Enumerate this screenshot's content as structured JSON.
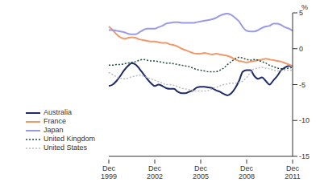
{
  "chart_data": {
    "type": "line",
    "y_label": "%",
    "categories": [
      "Dec 1999",
      null,
      null,
      null,
      null,
      null,
      null,
      null,
      null,
      null,
      null,
      null,
      "Dec 2002",
      null,
      null,
      null,
      null,
      null,
      null,
      null,
      null,
      null,
      null,
      null,
      "Dec 2005",
      null,
      null,
      null,
      null,
      null,
      null,
      null,
      null,
      null,
      null,
      null,
      "Dec 2008",
      null,
      null,
      null,
      null,
      null,
      null,
      null,
      null,
      null,
      null,
      null,
      "Dec 2011"
    ],
    "ylim": [
      -15,
      5
    ],
    "yticks": [
      -15,
      -10,
      -5,
      0,
      5
    ],
    "grid": false,
    "legend": "lower left",
    "series": [
      {
        "name": "Australia",
        "color": "#1f2a6b",
        "line_style": "solid",
        "values": [
          -5.2,
          -5.0,
          -4.5,
          -3.8,
          -3.0,
          -2.4,
          -2.0,
          -2.2,
          -2.8,
          -3.5,
          -4.2,
          -4.8,
          -5.2,
          -5.0,
          -5.2,
          -5.5,
          -5.6,
          -5.6,
          -6.0,
          -6.2,
          -6.2,
          -6.0,
          -5.8,
          -5.4,
          -5.3,
          -5.3,
          -5.4,
          -5.5,
          -5.8,
          -6.0,
          -6.3,
          -6.5,
          -6.2,
          -5.5,
          -4.5,
          -3.2,
          -3.0,
          -3.0,
          -3.8,
          -4.2,
          -4.0,
          -4.5,
          -5.0,
          -4.4,
          -3.8,
          -3.0,
          -2.6,
          -2.4,
          -2.4
        ]
      },
      {
        "name": "France",
        "color": "#f09a6a",
        "line_style": "solid",
        "values": [
          3.1,
          2.6,
          2.0,
          1.6,
          1.4,
          1.5,
          1.6,
          1.5,
          1.3,
          1.2,
          1.1,
          1.0,
          1.0,
          0.9,
          0.8,
          0.8,
          0.6,
          0.5,
          0.3,
          0.0,
          -0.2,
          -0.4,
          -0.6,
          -0.7,
          -0.7,
          -0.6,
          -0.7,
          -0.8,
          -0.7,
          -0.8,
          -0.9,
          -1.0,
          -1.2,
          -1.5,
          -1.7,
          -1.8,
          -1.9,
          -1.8,
          -1.7,
          -1.6,
          -1.5,
          -1.4,
          -1.5,
          -1.6,
          -1.7,
          -1.8,
          -2.0,
          -2.2,
          -2.4
        ]
      },
      {
        "name": "Japan",
        "color": "#9a9ae8",
        "line_style": "solid",
        "values": [
          2.6,
          2.6,
          2.5,
          2.4,
          2.3,
          2.1,
          2.0,
          2.0,
          2.3,
          2.6,
          2.8,
          2.8,
          2.8,
          3.0,
          3.2,
          3.5,
          3.6,
          3.7,
          3.7,
          3.6,
          3.6,
          3.6,
          3.6,
          3.7,
          3.8,
          3.9,
          4.0,
          4.1,
          4.3,
          4.6,
          4.8,
          4.9,
          4.7,
          4.3,
          3.8,
          3.0,
          2.5,
          2.4,
          2.4,
          2.6,
          2.9,
          3.1,
          3.2,
          3.5,
          3.5,
          3.3,
          3.0,
          2.8,
          2.5
        ]
      },
      {
        "name": "United Kingdom",
        "color": "#1d4f3a",
        "line_style": "dotted",
        "values": [
          -2.3,
          -2.3,
          -2.2,
          -2.2,
          -2.1,
          -2.0,
          -1.9,
          -1.8,
          -1.6,
          -1.5,
          -1.6,
          -1.7,
          -1.7,
          -1.8,
          -1.9,
          -2.0,
          -2.0,
          -2.1,
          -2.2,
          -2.3,
          -2.4,
          -2.5,
          -2.7,
          -2.9,
          -3.0,
          -3.1,
          -3.2,
          -3.2,
          -3.2,
          -3.0,
          -2.7,
          -2.2,
          -1.8,
          -1.4,
          -1.2,
          -1.3,
          -1.5,
          -1.6,
          -1.5,
          -1.6,
          -1.8,
          -2.0,
          -2.3,
          -2.5,
          -2.7,
          -2.8,
          -2.8,
          -2.7,
          -2.6
        ]
      },
      {
        "name": "United States",
        "color": "#bbbbbb",
        "line_style": "dotted",
        "values": [
          -3.3,
          -3.6,
          -3.9,
          -4.1,
          -4.2,
          -4.1,
          -3.9,
          -3.8,
          -3.7,
          -3.8,
          -4.0,
          -4.2,
          -4.4,
          -4.6,
          -4.8,
          -5.0,
          -5.0,
          -5.1,
          -5.3,
          -5.5,
          -5.6,
          -5.7,
          -5.8,
          -5.9,
          -5.9,
          -5.9,
          -5.8,
          -5.6,
          -5.4,
          -5.2,
          -5.0,
          -4.9,
          -4.8,
          -4.8,
          -4.7,
          -4.5,
          -4.0,
          -3.3,
          -2.8,
          -2.7,
          -2.6,
          -2.7,
          -2.8,
          -3.0,
          -3.1,
          -3.1,
          -3.0,
          -3.0,
          -3.0
        ]
      }
    ]
  }
}
